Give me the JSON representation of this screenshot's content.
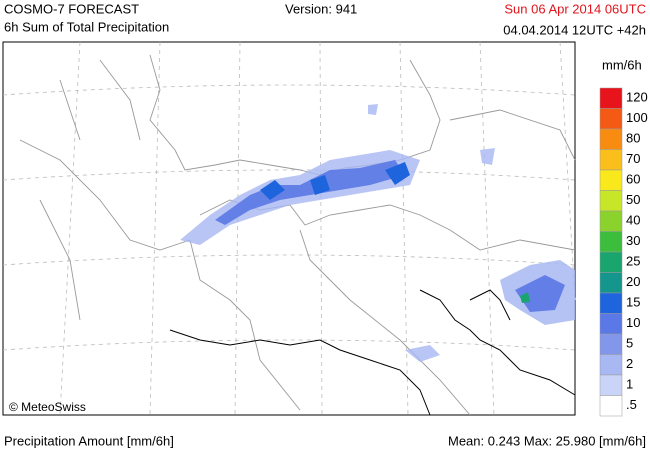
{
  "header": {
    "model": "COSMO-7 FORECAST",
    "product": "6h Sum of Total Precipitation",
    "version": "Version: 941",
    "valid_time": "Sun 06 Apr 2014 06UTC",
    "run_time": "04.04.2014 12UTC +42h"
  },
  "map": {
    "credit": "© MeteoSwiss"
  },
  "legend": {
    "unit": "mm/6h",
    "labels": [
      "120",
      "100",
      "80",
      "70",
      "60",
      "50",
      "40",
      "30",
      "25",
      "20",
      "15",
      "10",
      "5",
      "2",
      "1",
      ".5"
    ],
    "colors": [
      "#e8141c",
      "#f55a14",
      "#f88c10",
      "#fbbf1c",
      "#f9e81c",
      "#c8e628",
      "#8cd22c",
      "#3cbe3c",
      "#1aa46e",
      "#14968c",
      "#1e64dc",
      "#5a78e6",
      "#8296ea",
      "#a8b8f2",
      "#cad4f8",
      "#ffffff"
    ]
  },
  "footer": {
    "left": "Precipitation Amount [mm/6h]",
    "right": "Mean:  0.243 Max: 25.980 [mm/6h]"
  }
}
